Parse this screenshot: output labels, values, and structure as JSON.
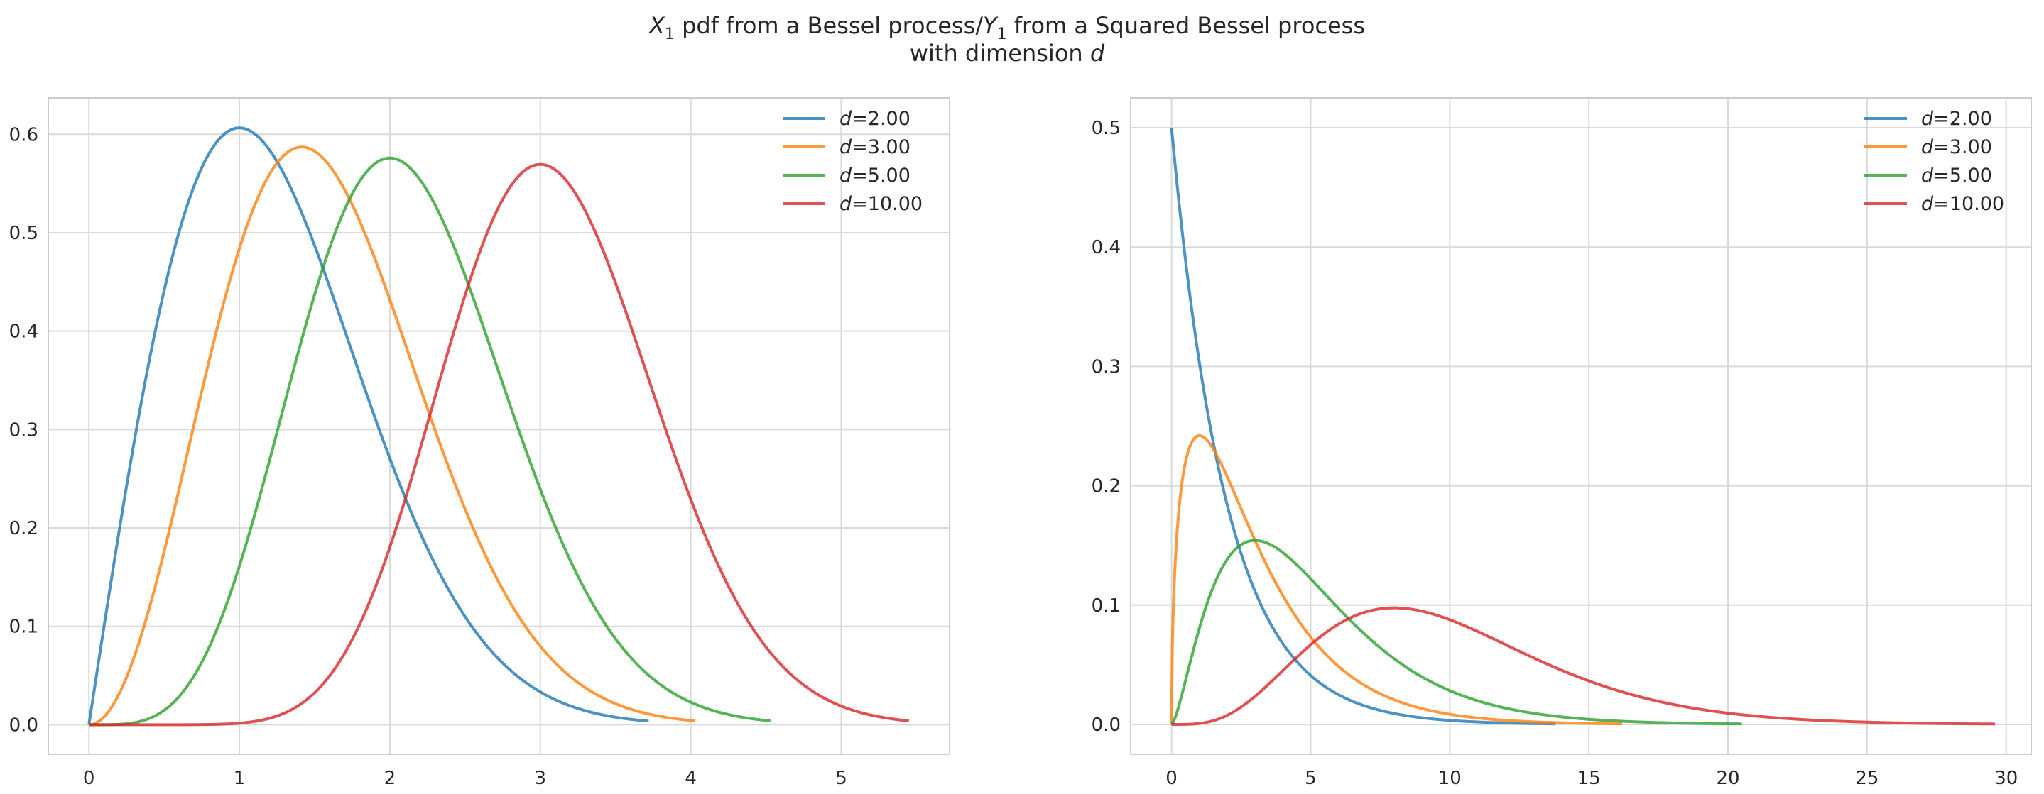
{
  "figure": {
    "title_line1_parts": {
      "x1_var": "X",
      "x1_sub": "1",
      "mid": " pdf from a Bessel process/",
      "y1_var": "Y",
      "y1_sub": "1",
      "end": " from a Squared Bessel process"
    },
    "title_line2_parts": {
      "prefix": "with dimension ",
      "var": "d"
    }
  },
  "chart_data": [
    {
      "type": "line",
      "title": "",
      "xlabel": "",
      "ylabel": "",
      "xlim": [
        -0.27,
        5.72
      ],
      "ylim": [
        -0.03,
        0.637
      ],
      "xticks": [
        0,
        1,
        2,
        3,
        4,
        5
      ],
      "yticks": [
        0.0,
        0.1,
        0.2,
        0.3,
        0.4,
        0.5,
        0.6
      ],
      "grid": true,
      "legend_position": "top-right",
      "series": [
        {
          "name": "d=2.00",
          "legend_var": "d",
          "legend_val": "=2.00",
          "color": "#1f77b4",
          "d": 2,
          "x_max": 3.72
        },
        {
          "name": "d=3.00",
          "legend_var": "d",
          "legend_val": "=3.00",
          "color": "#ff7f0e",
          "d": 3,
          "x_max": 4.03
        },
        {
          "name": "d=5.00",
          "legend_var": "d",
          "legend_val": "=5.00",
          "color": "#2ca02c",
          "d": 5,
          "x_max": 4.53
        },
        {
          "name": "d=10.00",
          "legend_var": "d",
          "legend_val": "=10.00",
          "color": "#d62728",
          "d": 10,
          "x_max": 5.45
        }
      ]
    },
    {
      "type": "line",
      "title": "",
      "xlabel": "",
      "ylabel": "",
      "xlim": [
        -1.47,
        30.9
      ],
      "ylim": [
        -0.025,
        0.525
      ],
      "xticks": [
        0,
        5,
        10,
        15,
        20,
        25,
        30
      ],
      "yticks": [
        0.0,
        0.1,
        0.2,
        0.3,
        0.4,
        0.5
      ],
      "grid": true,
      "legend_position": "top-right",
      "series": [
        {
          "name": "d=2.00",
          "legend_var": "d",
          "legend_val": "=2.00",
          "color": "#1f77b4",
          "d": 2,
          "x_max": 13.8
        },
        {
          "name": "d=3.00",
          "legend_var": "d",
          "legend_val": "=3.00",
          "color": "#ff7f0e",
          "d": 3,
          "x_max": 16.2
        },
        {
          "name": "d=5.00",
          "legend_var": "d",
          "legend_val": "=5.00",
          "color": "#2ca02c",
          "d": 5,
          "x_max": 20.5
        },
        {
          "name": "d=10.00",
          "legend_var": "d",
          "legend_val": "=10.00",
          "color": "#d62728",
          "d": 10,
          "x_max": 29.6
        }
      ]
    }
  ]
}
